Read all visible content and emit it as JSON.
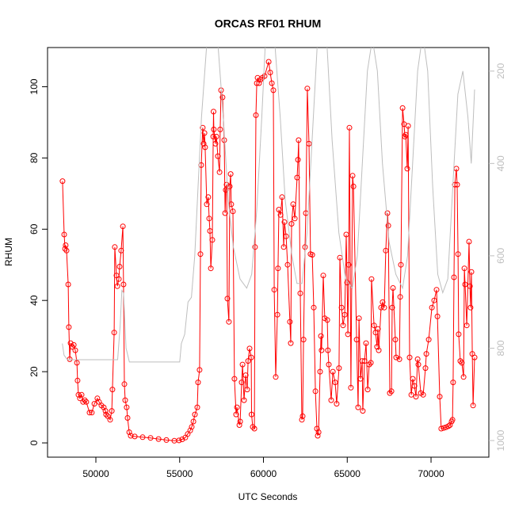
{
  "chart_data": {
    "type": "line",
    "title": "ORCAS RF01 RHUM",
    "xlabel": "UTC Seconds",
    "ylabel": "RHUM",
    "xlim": [
      47116,
      73450
    ],
    "xticks": [
      50000,
      55000,
      60000,
      65000,
      70000
    ],
    "ylim": [
      -4,
      111
    ],
    "yticks": [
      0,
      20,
      40,
      60,
      80,
      100
    ],
    "y2lim": [
      1036,
      149
    ],
    "y2ticks": [
      200,
      400,
      600,
      800,
      1000
    ],
    "series": [
      {
        "color": "#ff0000",
        "markers": true,
        "x": [
          48010,
          48110,
          48160,
          48200,
          48250,
          48350,
          48390,
          48440,
          48490,
          48580,
          48680,
          48770,
          48870,
          48910,
          48960,
          49050,
          49150,
          49240,
          49340,
          49430,
          49620,
          49760,
          49910,
          50090,
          50190,
          50330,
          50470,
          50570,
          50610,
          50710,
          50850,
          50950,
          50990,
          51090,
          51130,
          51230,
          51280,
          51370,
          51420,
          51510,
          51610,
          51650,
          51700,
          51750,
          51840,
          51890,
          51990,
          52080,
          52320,
          52790,
          53260,
          53740,
          54210,
          54680,
          54960,
          55150,
          55340,
          55480,
          55630,
          55720,
          55820,
          55910,
          56050,
          56100,
          56190,
          56240,
          56290,
          56380,
          56430,
          56480,
          56520,
          56620,
          56710,
          56760,
          56810,
          56860,
          56950,
          57000,
          57020,
          57040,
          57140,
          57190,
          57280,
          57380,
          57420,
          57470,
          57560,
          57660,
          57710,
          57750,
          57800,
          57850,
          57940,
          57990,
          58040,
          58080,
          58180,
          58270,
          58370,
          58420,
          58560,
          58610,
          58700,
          58750,
          58840,
          58940,
          59030,
          59080,
          59170,
          59270,
          59290,
          59360,
          59460,
          59500,
          59550,
          59600,
          59650,
          59740,
          59830,
          59930,
          60070,
          60310,
          60400,
          60500,
          60590,
          60640,
          60730,
          60830,
          60870,
          60920,
          61020,
          61110,
          61210,
          61250,
          61350,
          61440,
          61580,
          61630,
          61680,
          61770,
          61870,
          62010,
          62060,
          62100,
          62200,
          62290,
          62340,
          62390,
          62480,
          62530,
          62620,
          62720,
          62810,
          62910,
          63000,
          63100,
          63190,
          63240,
          63290,
          63380,
          63430,
          63470,
          63570,
          63660,
          63810,
          63850,
          63900,
          64040,
          64140,
          64280,
          64370,
          64510,
          64560,
          64660,
          64750,
          64850,
          64940,
          64990,
          65040,
          65080,
          65130,
          65220,
          65320,
          65370,
          65560,
          65650,
          65700,
          65790,
          65890,
          65930,
          66030,
          66120,
          66220,
          66310,
          66410,
          66450,
          66600,
          66690,
          66780,
          66830,
          66880,
          67020,
          67110,
          67210,
          67300,
          67400,
          67450,
          67540,
          67640,
          67680,
          67730,
          67870,
          67920,
          68110,
          68160,
          68200,
          68300,
          68390,
          68440,
          68490,
          68580,
          68630,
          68720,
          68820,
          68910,
          69010,
          69100,
          69200,
          69240,
          69390,
          69530,
          69670,
          69720,
          69860,
          70050,
          70190,
          70330,
          70380,
          70520,
          70610,
          70760,
          70900,
          71040,
          71130,
          71230,
          71280,
          71320,
          71370,
          71420,
          71510,
          71560,
          71610,
          71650,
          71750,
          71840,
          71940,
          71990,
          72030,
          72130,
          72270,
          72320,
          72360,
          72410,
          72460,
          72510,
          72600
        ],
        "values": [
          73.5,
          58.5,
          54.5,
          55.5,
          54,
          44.5,
          32.5,
          23.5,
          28,
          27,
          27.5,
          26,
          22.5,
          17.5,
          13.5,
          12.5,
          13.5,
          11.5,
          12,
          11.5,
          8.5,
          8.5,
          11,
          12.5,
          11.5,
          10.5,
          10,
          9,
          8,
          7.5,
          6.5,
          9,
          15,
          31,
          55,
          47,
          44,
          46,
          49.5,
          54,
          60.8,
          44.5,
          16.5,
          12,
          10,
          7,
          3,
          2,
          1.8,
          1.6,
          1.4,
          1.1,
          0.8,
          0.6,
          0.7,
          1,
          1.5,
          2.5,
          3.5,
          4.5,
          6,
          8,
          10,
          17,
          20.5,
          53,
          78,
          88.5,
          84,
          87,
          83,
          67,
          69,
          63,
          59.5,
          49,
          57,
          86,
          93,
          88,
          84,
          86,
          80.5,
          76,
          88,
          99,
          97,
          85,
          64.5,
          71,
          72.5,
          40.5,
          34,
          72,
          75.5,
          67,
          65,
          18,
          8,
          10,
          5,
          6,
          17,
          22,
          12,
          19,
          15,
          23,
          26.5,
          24,
          8,
          4.5,
          4,
          55,
          92,
          101,
          102.5,
          101,
          102,
          102.5,
          103,
          107,
          104,
          101,
          99,
          43,
          18.5,
          36,
          49,
          65.5,
          64,
          69,
          55,
          62,
          58,
          50,
          34,
          28,
          61.5,
          67,
          63,
          74.5,
          79.5,
          85,
          42,
          6.5,
          7.5,
          29,
          55,
          64.5,
          99.5,
          84,
          53,
          52.8,
          38,
          14.5,
          4,
          2,
          3,
          20,
          30,
          26,
          47,
          35,
          34.5,
          26,
          22,
          12,
          20,
          17,
          11,
          21,
          52,
          38,
          33,
          36,
          58.5,
          45,
          30.5,
          50,
          88.5,
          15.5,
          75,
          72,
          29,
          10,
          35,
          18,
          23,
          9,
          23,
          28,
          15,
          22,
          22.5,
          46,
          33,
          31,
          27,
          32,
          26,
          38,
          39.5,
          38,
          54,
          64.5,
          61,
          14,
          14.5,
          38,
          43.5,
          29,
          24,
          23.5,
          41,
          50,
          94,
          89.5,
          86,
          86.5,
          77,
          89,
          24,
          13.5,
          18,
          16,
          13,
          23.5,
          22,
          14,
          13.5,
          21,
          25,
          29,
          38,
          40,
          43,
          35.5,
          13,
          4,
          4.2,
          4.4,
          4.7,
          5,
          6,
          6.5,
          17,
          46.5,
          72.5,
          77,
          72.5,
          53,
          30.5,
          23,
          22.5,
          18.5,
          49,
          44.5,
          33,
          56.5,
          44,
          38,
          48,
          25,
          10.5,
          24
        ]
      },
      {
        "color": "#bebebe",
        "axis": "y2",
        "markers": false,
        "x": [
          48000,
          48100,
          48300,
          51300,
          51450,
          51550,
          51650,
          51800,
          52000,
          55000,
          55100,
          55300,
          55500,
          55700,
          55900,
          56100,
          56300,
          56500,
          56700,
          57200,
          57600,
          57900,
          58200,
          58600,
          59000,
          59300,
          59600,
          59900,
          60100,
          60400,
          60700,
          61000,
          61300,
          61700,
          62000,
          62300,
          62600,
          62900,
          63200,
          63500,
          63800,
          64100,
          64500,
          64900,
          65300,
          65600,
          65900,
          66200,
          66500,
          66800,
          67100,
          67500,
          67900,
          68300,
          68600,
          68900,
          69200,
          69500,
          69800,
          70100,
          70400,
          70700,
          71000,
          71300,
          71600,
          71900,
          72200,
          72400,
          72600
        ],
        "values": [
          790,
          815,
          825,
          825,
          750,
          675,
          680,
          800,
          830,
          830,
          790,
          770,
          700,
          690,
          600,
          450,
          300,
          200,
          100,
          100,
          300,
          480,
          580,
          650,
          670,
          640,
          500,
          300,
          150,
          100,
          150,
          300,
          480,
          600,
          660,
          660,
          550,
          350,
          150,
          100,
          150,
          350,
          550,
          650,
          670,
          600,
          400,
          200,
          130,
          200,
          400,
          570,
          640,
          670,
          600,
          400,
          200,
          120,
          200,
          450,
          640,
          680,
          650,
          450,
          250,
          200,
          300,
          400,
          240
        ]
      }
    ]
  }
}
